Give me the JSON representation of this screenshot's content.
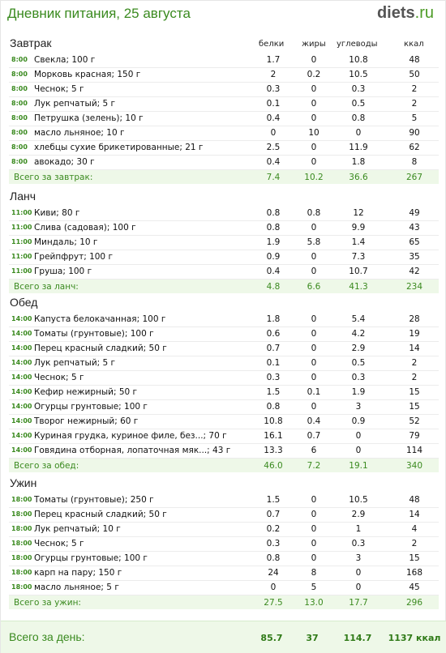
{
  "title": "Дневник питания, 25 августа",
  "logo": {
    "main": "diets",
    "tld": ".ru"
  },
  "columns": {
    "protein": "белки",
    "fat": "жиры",
    "carbs": "углеводы",
    "kcal": "ккал"
  },
  "sections": [
    {
      "name": "Завтрак",
      "items": [
        {
          "time": "8:00",
          "name": "Свекла; 100 г",
          "p": "1.7",
          "f": "0",
          "c": "10.8",
          "k": "48"
        },
        {
          "time": "8:00",
          "name": "Морковь красная; 150 г",
          "p": "2",
          "f": "0.2",
          "c": "10.5",
          "k": "50"
        },
        {
          "time": "8:00",
          "name": "Чеснок; 5 г",
          "p": "0.3",
          "f": "0",
          "c": "0.3",
          "k": "2"
        },
        {
          "time": "8:00",
          "name": "Лук репчатый; 5 г",
          "p": "0.1",
          "f": "0",
          "c": "0.5",
          "k": "2"
        },
        {
          "time": "8:00",
          "name": "Петрушка (зелень); 10 г",
          "p": "0.4",
          "f": "0",
          "c": "0.8",
          "k": "5"
        },
        {
          "time": "8:00",
          "name": "масло льняное; 10 г",
          "p": "0",
          "f": "10",
          "c": "0",
          "k": "90"
        },
        {
          "time": "8:00",
          "name": "хлебцы сухие брикетированные; 21 г",
          "p": "2.5",
          "f": "0",
          "c": "11.9",
          "k": "62"
        },
        {
          "time": "8:00",
          "name": "авокадо; 30 г",
          "p": "0.4",
          "f": "0",
          "c": "1.8",
          "k": "8"
        }
      ],
      "total": {
        "label": "Всего за завтрак:",
        "p": "7.4",
        "f": "10.2",
        "c": "36.6",
        "k": "267"
      }
    },
    {
      "name": "Ланч",
      "items": [
        {
          "time": "11:00",
          "name": "Киви; 80 г",
          "p": "0.8",
          "f": "0.8",
          "c": "12",
          "k": "49"
        },
        {
          "time": "11:00",
          "name": "Слива (садовая); 100 г",
          "p": "0.8",
          "f": "0",
          "c": "9.9",
          "k": "43"
        },
        {
          "time": "11:00",
          "name": "Миндаль; 10 г",
          "p": "1.9",
          "f": "5.8",
          "c": "1.4",
          "k": "65"
        },
        {
          "time": "11:00",
          "name": "Грейпфрут; 100 г",
          "p": "0.9",
          "f": "0",
          "c": "7.3",
          "k": "35"
        },
        {
          "time": "11:00",
          "name": "Груша; 100 г",
          "p": "0.4",
          "f": "0",
          "c": "10.7",
          "k": "42"
        }
      ],
      "total": {
        "label": "Всего за ланч:",
        "p": "4.8",
        "f": "6.6",
        "c": "41.3",
        "k": "234"
      }
    },
    {
      "name": "Обед",
      "items": [
        {
          "time": "14:00",
          "name": "Капуста белокачанная; 100 г",
          "p": "1.8",
          "f": "0",
          "c": "5.4",
          "k": "28"
        },
        {
          "time": "14:00",
          "name": "Томаты (грунтовые); 100 г",
          "p": "0.6",
          "f": "0",
          "c": "4.2",
          "k": "19"
        },
        {
          "time": "14:00",
          "name": "Перец красный сладкий; 50 г",
          "p": "0.7",
          "f": "0",
          "c": "2.9",
          "k": "14"
        },
        {
          "time": "14:00",
          "name": "Лук репчатый; 5 г",
          "p": "0.1",
          "f": "0",
          "c": "0.5",
          "k": "2"
        },
        {
          "time": "14:00",
          "name": "Чеснок; 5 г",
          "p": "0.3",
          "f": "0",
          "c": "0.3",
          "k": "2"
        },
        {
          "time": "14:00",
          "name": "Кефир нежирный; 50 г",
          "p": "1.5",
          "f": "0.1",
          "c": "1.9",
          "k": "15"
        },
        {
          "time": "14:00",
          "name": "Огурцы грунтовые; 100 г",
          "p": "0.8",
          "f": "0",
          "c": "3",
          "k": "15"
        },
        {
          "time": "14:00",
          "name": "Творог нежирный; 60 г",
          "p": "10.8",
          "f": "0.4",
          "c": "0.9",
          "k": "52"
        },
        {
          "time": "14:00",
          "name": "Куриная грудка, куриное филе, без...; 70 г",
          "p": "16.1",
          "f": "0.7",
          "c": "0",
          "k": "79"
        },
        {
          "time": "14:00",
          "name": "Говядина отборная, лопаточная мяк...; 43 г",
          "p": "13.3",
          "f": "6",
          "c": "0",
          "k": "114"
        }
      ],
      "total": {
        "label": "Всего за обед:",
        "p": "46.0",
        "f": "7.2",
        "c": "19.1",
        "k": "340"
      }
    },
    {
      "name": "Ужин",
      "items": [
        {
          "time": "18:00",
          "name": "Томаты (грунтовые); 250 г",
          "p": "1.5",
          "f": "0",
          "c": "10.5",
          "k": "48"
        },
        {
          "time": "18:00",
          "name": "Перец красный сладкий; 50 г",
          "p": "0.7",
          "f": "0",
          "c": "2.9",
          "k": "14"
        },
        {
          "time": "18:00",
          "name": "Лук репчатый; 10 г",
          "p": "0.2",
          "f": "0",
          "c": "1",
          "k": "4"
        },
        {
          "time": "18:00",
          "name": "Чеснок; 5 г",
          "p": "0.3",
          "f": "0",
          "c": "0.3",
          "k": "2"
        },
        {
          "time": "18:00",
          "name": "Огурцы грунтовые; 100 г",
          "p": "0.8",
          "f": "0",
          "c": "3",
          "k": "15"
        },
        {
          "time": "18:00",
          "name": "карп на пару; 150 г",
          "p": "24",
          "f": "8",
          "c": "0",
          "k": "168"
        },
        {
          "time": "18:00",
          "name": "масло льняное; 5 г",
          "p": "0",
          "f": "5",
          "c": "0",
          "k": "45"
        }
      ],
      "total": {
        "label": "Всего за ужин:",
        "p": "27.5",
        "f": "13.0",
        "c": "17.7",
        "k": "296"
      }
    }
  ],
  "day_total": {
    "label": "Всего за день:",
    "p": "85.7",
    "f": "37",
    "c": "114.7",
    "k": "1137 ккал"
  },
  "colors": {
    "accent": "#3a8a1f",
    "total_bg": "#eef8e8"
  }
}
